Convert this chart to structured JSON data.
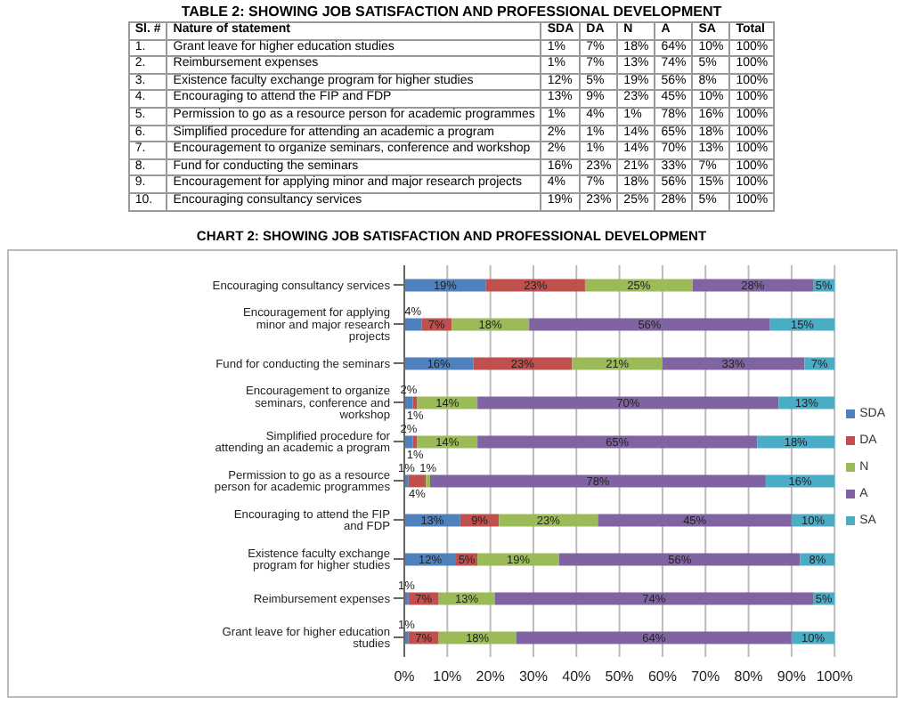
{
  "chart_data": {
    "type": "bar",
    "orientation": "horizontal",
    "stacked": true,
    "title": "CHART 2: SHOWING JOB SATISFACTION AND PROFESSIONAL DEVELOPMENT",
    "annotations": [
      "TABLE 2: SHOWING JOB SATISFACTION AND PROFESSIONAL DEVELOPMENT",
      "Sl. #",
      "Nature of statement",
      "Total",
      "10.",
      "9.",
      "8.",
      "7.",
      "6.",
      "5.",
      "4.",
      "3.",
      "2.",
      "1.",
      "100%",
      "100%",
      "100%",
      "100%",
      "100%",
      "100%",
      "100%",
      "100%",
      "100%",
      "100%"
    ],
    "categories": [
      "Encouraging consultancy services",
      "Encouragement for applying minor and major research projects",
      "Fund for conducting the seminars",
      "Encouragement to organize seminars, conference and workshop",
      "Simplified procedure for attending an academic a program",
      "Permission to go as a resource person for academic  programmes",
      "Encouraging to attend the FIP and FDP",
      "Existence faculty exchange program for higher studies",
      "Reimbursement expenses",
      "Grant  leave for higher education studies"
    ],
    "series": [
      {
        "name": "SDA",
        "color": "#4f81bd",
        "values": [
          19,
          4,
          16,
          2,
          2,
          1,
          13,
          12,
          1,
          1
        ],
        "value_labels": [
          "19%",
          "4%",
          "16%",
          "2%",
          "2%",
          "1%",
          "13%",
          "12%",
          "1%",
          "1%"
        ]
      },
      {
        "name": "DA",
        "color": "#c0504d",
        "values": [
          23,
          7,
          23,
          1,
          1,
          4,
          9,
          5,
          7,
          7
        ],
        "value_labels": [
          "23%",
          "7%",
          "23%",
          "1%",
          "1%",
          "4%",
          "9%",
          "5%",
          "7%",
          "7%"
        ]
      },
      {
        "name": "N",
        "color": "#9bbb59",
        "values": [
          25,
          18,
          21,
          14,
          14,
          1,
          23,
          19,
          13,
          18
        ],
        "value_labels": [
          "25%",
          "18%",
          "21%",
          "14%",
          "14%",
          "1%",
          "23%",
          "19%",
          "13%",
          "18%"
        ]
      },
      {
        "name": "A",
        "color": "#8064a2",
        "values": [
          28,
          56,
          33,
          70,
          65,
          78,
          45,
          56,
          74,
          64
        ],
        "value_labels": [
          "28%",
          "56%",
          "33%",
          "70%",
          "65%",
          "78%",
          "45%",
          "56%",
          "74%",
          "64%"
        ]
      },
      {
        "name": "SA",
        "color": "#4bacc6",
        "values": [
          5,
          15,
          7,
          13,
          18,
          16,
          10,
          8,
          5,
          10
        ],
        "value_labels": [
          "5%",
          "15%",
          "7%",
          "13%",
          "18%",
          "16%",
          "10%",
          "8%",
          "5%",
          "10%"
        ]
      }
    ],
    "xlim": [
      0,
      100
    ],
    "xticks": [
      {
        "value": 0,
        "label": "0%"
      },
      {
        "value": 10,
        "label": "10%"
      },
      {
        "value": 20,
        "label": "20%"
      },
      {
        "value": 30,
        "label": "30%"
      },
      {
        "value": 40,
        "label": "40%"
      },
      {
        "value": 50,
        "label": "50%"
      },
      {
        "value": 60,
        "label": "60%"
      },
      {
        "value": 70,
        "label": "70%"
      },
      {
        "value": 80,
        "label": "80%"
      },
      {
        "value": 90,
        "label": "90%"
      },
      {
        "value": 100,
        "label": "100%"
      }
    ],
    "grid": "x",
    "legend": "right"
  }
}
